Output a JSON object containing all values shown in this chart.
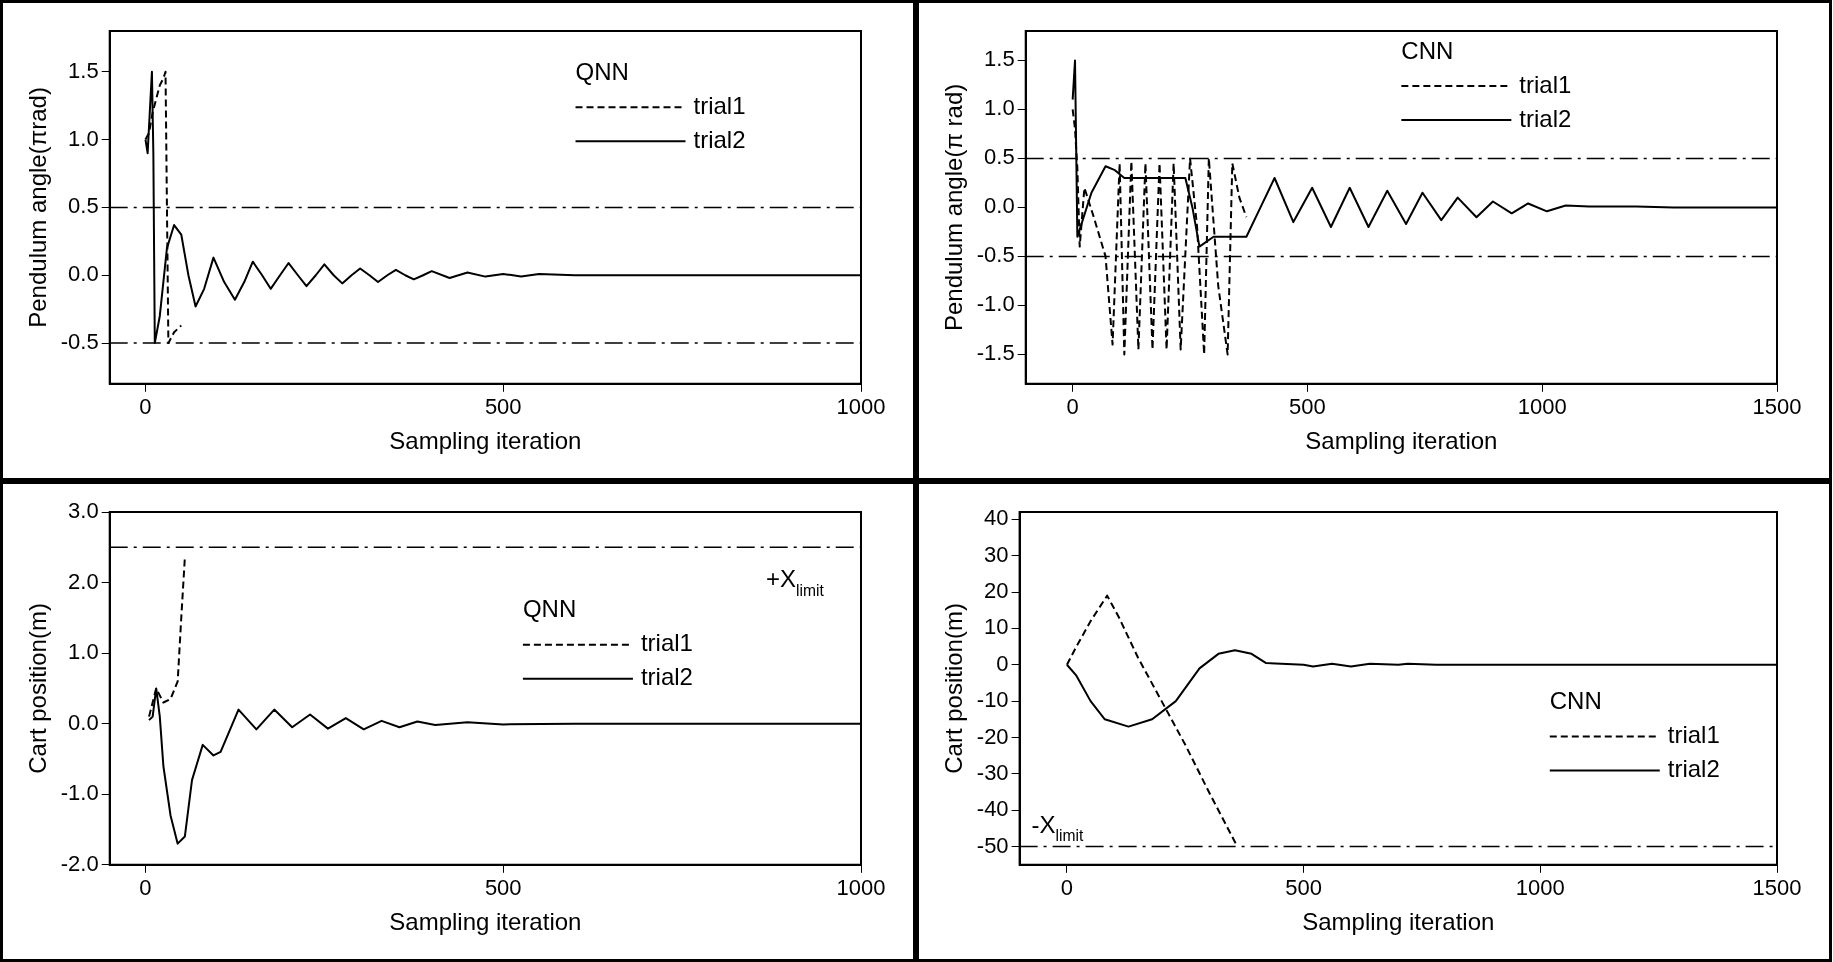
{
  "chart_data": [
    {
      "type": "line",
      "xlabel": "Sampling iteration",
      "ylabel": "Pendulum angle(πrad)",
      "legend_title": "QNN",
      "legend": "top right",
      "grid": false,
      "xlim": [
        -50,
        1000
      ],
      "xticks": [
        0,
        500,
        1000
      ],
      "ylim": [
        -0.8,
        1.8
      ],
      "yticks": [
        -0.5,
        {
          "value": 0,
          "label": "0.0"
        },
        0.5,
        {
          "value": 1,
          "label": "1.0"
        },
        1.5
      ],
      "ref_lines": [
        {
          "axis": "y",
          "value": 0.5,
          "line_style": "dashed"
        },
        {
          "axis": "y",
          "value": -0.5,
          "line_style": "dashed"
        }
      ],
      "series": [
        {
          "name": "trial1",
          "color": "#000000",
          "line_style": "dashed",
          "x": [
            0,
            5,
            10,
            15,
            20,
            25,
            28,
            32,
            40,
            50
          ],
          "values": [
            1.0,
            1.05,
            1.2,
            1.3,
            1.4,
            1.45,
            1.5,
            -0.5,
            -0.42,
            -0.37
          ]
        },
        {
          "name": "trial2",
          "color": "#000000",
          "line_style": "solid",
          "x": [
            0,
            3,
            6,
            9,
            11,
            13,
            20,
            30,
            40,
            50,
            60,
            70,
            82,
            95,
            110,
            125,
            138,
            150,
            163,
            175,
            188,
            200,
            213,
            225,
            238,
            250,
            263,
            275,
            288,
            300,
            313,
            325,
            338,
            350,
            363,
            375,
            388,
            400,
            425,
            450,
            475,
            500,
            525,
            550,
            600,
            1000
          ],
          "values": [
            1.0,
            0.9,
            1.2,
            1.5,
            0.9,
            -0.5,
            -0.3,
            0.2,
            0.37,
            0.3,
            0.0,
            -0.23,
            -0.1,
            0.13,
            -0.05,
            -0.18,
            -0.05,
            0.1,
            0.0,
            -0.1,
            0.0,
            0.09,
            0.0,
            -0.08,
            0.0,
            0.08,
            0.0,
            -0.06,
            0.0,
            0.05,
            0.0,
            -0.05,
            0.0,
            0.04,
            0.0,
            -0.03,
            0.0,
            0.03,
            -0.02,
            0.02,
            -0.01,
            0.01,
            -0.01,
            0.01,
            0.0,
            0.0
          ]
        }
      ]
    },
    {
      "type": "line",
      "xlabel": "Sampling iteration",
      "ylabel": "Pendulum angle(π rad)",
      "legend_title": "CNN",
      "legend": "top",
      "grid": false,
      "xlim": [
        -100,
        1500
      ],
      "xticks": [
        0,
        500,
        1000,
        1500
      ],
      "ylim": [
        -1.8,
        1.8
      ],
      "yticks": [
        -1.5,
        {
          "value": -1,
          "label": "-1.0"
        },
        -0.5,
        {
          "value": 0,
          "label": "0.0"
        },
        0.5,
        {
          "value": 1,
          "label": "1.0"
        },
        1.5
      ],
      "ref_lines": [
        {
          "axis": "y",
          "value": 0.5,
          "line_style": "dashed"
        },
        {
          "axis": "y",
          "value": -0.5,
          "line_style": "dashed"
        }
      ],
      "series": [
        {
          "name": "trial1",
          "color": "#000000",
          "line_style": "dashed",
          "x": [
            0,
            5,
            10,
            15,
            25,
            45,
            70,
            85,
            100,
            110,
            125,
            140,
            155,
            170,
            185,
            200,
            215,
            230,
            250,
            265,
            280,
            290,
            310,
            330,
            340,
            355,
            370
          ],
          "values": [
            1.0,
            0.8,
            0.4,
            -0.4,
            0.2,
            -0.1,
            -0.5,
            -1.4,
            0.45,
            -1.5,
            0.47,
            -1.45,
            0.45,
            -1.45,
            0.45,
            -1.45,
            0.45,
            -1.45,
            0.5,
            -0.2,
            -1.5,
            0.5,
            -0.8,
            -1.5,
            0.45,
            0.1,
            -0.1
          ]
        },
        {
          "name": "trial2",
          "color": "#000000",
          "line_style": "solid",
          "x": [
            0,
            5,
            10,
            20,
            40,
            70,
            90,
            110,
            240,
            255,
            270,
            300,
            370,
            400,
            430,
            470,
            510,
            550,
            590,
            630,
            670,
            710,
            745,
            785,
            820,
            860,
            895,
            935,
            970,
            1010,
            1050,
            1100,
            1200,
            1280,
            1500
          ],
          "values": [
            1.1,
            1.5,
            -0.3,
            -0.15,
            0.15,
            0.42,
            0.38,
            0.3,
            0.3,
            0.0,
            -0.4,
            -0.3,
            -0.3,
            0.0,
            0.3,
            -0.15,
            0.2,
            -0.2,
            0.2,
            -0.2,
            0.17,
            -0.17,
            0.15,
            -0.13,
            0.1,
            -0.1,
            0.06,
            -0.06,
            0.04,
            -0.04,
            0.02,
            0.01,
            0.01,
            0.0,
            0.0
          ]
        }
      ]
    },
    {
      "type": "line",
      "xlabel": "Sampling iteration",
      "ylabel": "Cart position(m)",
      "legend_title": "QNN",
      "legend": "right",
      "grid": false,
      "xlim": [
        -50,
        1000
      ],
      "xticks": [
        0,
        500,
        1000
      ],
      "ylim": [
        -2,
        3
      ],
      "yticks": [
        {
          "value": -2,
          "label": "-2.0"
        },
        {
          "value": -1,
          "label": "-1.0"
        },
        {
          "value": 0,
          "label": "0.0"
        },
        {
          "value": 1,
          "label": "1.0"
        },
        {
          "value": 2,
          "label": "2.0"
        },
        {
          "value": 3,
          "label": "3.0"
        }
      ],
      "ref_lines": [
        {
          "axis": "y",
          "value": 2.5,
          "label": "+X$_{limit}$",
          "line_style": "dashed"
        }
      ],
      "series": [
        {
          "name": "trial1",
          "color": "#000000",
          "line_style": "dashed",
          "x": [
            5,
            15,
            25,
            35,
            45,
            50,
            55
          ],
          "values": [
            0.1,
            0.5,
            0.3,
            0.35,
            0.6,
            1.5,
            2.35
          ]
        },
        {
          "name": "trial2",
          "color": "#000000",
          "line_style": "solid",
          "x": [
            5,
            10,
            15,
            20,
            25,
            35,
            45,
            55,
            65,
            80,
            95,
            105,
            130,
            155,
            180,
            205,
            230,
            255,
            280,
            305,
            330,
            355,
            380,
            405,
            450,
            500,
            600,
            1000
          ],
          "values": [
            0.05,
            0.1,
            0.5,
            0.1,
            -0.6,
            -1.3,
            -1.7,
            -1.6,
            -0.8,
            -0.3,
            -0.45,
            -0.4,
            0.2,
            -0.08,
            0.2,
            -0.05,
            0.13,
            -0.07,
            0.08,
            -0.08,
            0.04,
            -0.05,
            0.03,
            -0.02,
            0.02,
            -0.01,
            0.0,
            0.0
          ]
        }
      ]
    },
    {
      "type": "line",
      "xlabel": "Sampling iteration",
      "ylabel": "Cart position(m)",
      "legend_title": "CNN",
      "legend": "bottom right",
      "grid": false,
      "xlim": [
        -100,
        1500
      ],
      "xticks": [
        0,
        500,
        1000,
        1500
      ],
      "ylim": [
        -55,
        42
      ],
      "yticks": [
        -50,
        -40,
        -30,
        -20,
        -10,
        0,
        10,
        20,
        30,
        40
      ],
      "ref_lines": [
        {
          "axis": "y",
          "value": -50,
          "label": "-X$_{limit}$",
          "line_style": "dashed"
        }
      ],
      "series": [
        {
          "name": "trial1",
          "color": "#000000",
          "line_style": "dashed",
          "x": [
            0,
            20,
            50,
            85,
            110,
            150,
            200,
            250,
            300,
            340,
            360
          ],
          "values": [
            0,
            5,
            12,
            19,
            13,
            2,
            -10,
            -22,
            -35,
            -45,
            -50
          ]
        },
        {
          "name": "trial2",
          "color": "#000000",
          "line_style": "solid",
          "x": [
            0,
            20,
            50,
            80,
            130,
            180,
            230,
            280,
            320,
            355,
            390,
            420,
            500,
            520,
            560,
            600,
            640,
            700,
            720,
            780,
            1500
          ],
          "values": [
            0,
            -3,
            -10,
            -15,
            -17,
            -15,
            -10,
            -1,
            3,
            4,
            3,
            0.5,
            0,
            -0.5,
            0.3,
            -0.5,
            0.3,
            0,
            0.3,
            0,
            0
          ]
        }
      ]
    }
  ]
}
